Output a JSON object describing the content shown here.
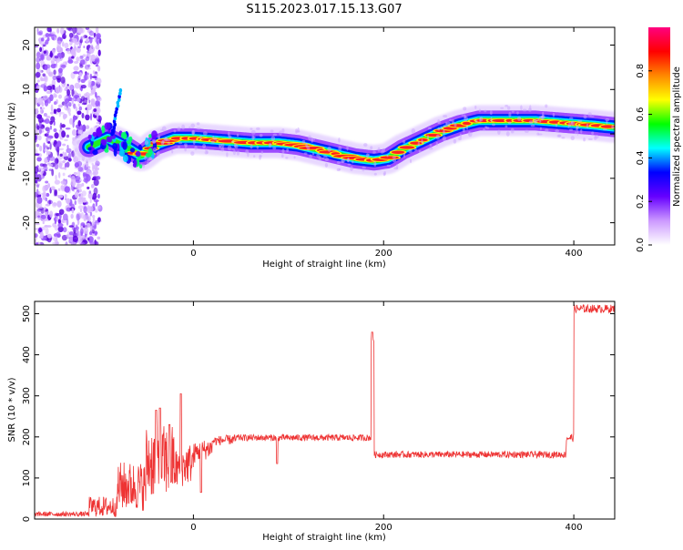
{
  "title": "S115.2023.017.15.13.G07",
  "chart_data": [
    {
      "type": "heatmap",
      "title": "",
      "xlabel": "Height of straight line (km)",
      "ylabel": "Frequency (Hz)",
      "xlim": [
        -167,
        443
      ],
      "ylim": [
        -25,
        24
      ],
      "xticks": [
        0,
        200,
        400
      ],
      "yticks": [
        -20,
        -10,
        0,
        10,
        20
      ],
      "colorbar": {
        "label": "Normalized spectral amplitude",
        "range": [
          0,
          1
        ],
        "ticks": [
          "0.0",
          "0.2",
          "0.4",
          "0.6",
          "0.8"
        ],
        "tick_values": [
          0.0,
          0.2,
          0.4,
          0.6,
          0.8
        ],
        "colors": [
          "#ffffff",
          "#cc99ff",
          "#6600ff",
          "#0000ff",
          "#00ffff",
          "#00ff00",
          "#ffff00",
          "#ff8800",
          "#ff0000",
          "#ff0080"
        ]
      },
      "ridge": {
        "x": [
          -110,
          -90,
          -70,
          -55,
          -40,
          -20,
          0,
          30,
          60,
          90,
          110,
          130,
          150,
          170,
          190,
          205,
          220,
          240,
          260,
          280,
          300,
          330,
          360,
          390,
          420,
          443
        ],
        "y": [
          -3,
          -1,
          -3,
          -5,
          -2.5,
          -1,
          -1,
          -1.5,
          -2,
          -2,
          -2.5,
          -3.5,
          -4.5,
          -5.5,
          -6,
          -5.5,
          -3.5,
          -1.5,
          0.5,
          2,
          3,
          3,
          3,
          2.5,
          2,
          1.5
        ]
      },
      "noise_region_x": [
        -167,
        -110
      ],
      "spur": {
        "x": -85,
        "y_range": [
          0,
          10
        ]
      }
    },
    {
      "type": "line",
      "title": "",
      "xlabel": "Height of straight line (km)",
      "ylabel": "SNR (10 * v/v)",
      "xlim": [
        -167,
        443
      ],
      "ylim": [
        0,
        530
      ],
      "xticks": [
        0,
        200,
        400
      ],
      "yticks": [
        0,
        100,
        200,
        300,
        400,
        500
      ],
      "color": "#ee3333",
      "segments": [
        {
          "x0": -167,
          "x1": -110,
          "mean": 12,
          "noise": 6
        },
        {
          "x0": -110,
          "x1": -80,
          "mean": 30,
          "noise": 25
        },
        {
          "x0": -80,
          "x1": -50,
          "mean": 80,
          "noise": 60
        },
        {
          "x0": -50,
          "x1": -20,
          "mean": 140,
          "noise": 90
        },
        {
          "x0": -20,
          "x1": 0,
          "mean": 120,
          "noise": 50
        },
        {
          "x0": 0,
          "x1": 20,
          "mean": 160,
          "noise": 25
        },
        {
          "x0": 20,
          "x1": 45,
          "mean": 190,
          "noise": 12
        },
        {
          "x0": 45,
          "x1": 187,
          "mean": 198,
          "noise": 8
        },
        {
          "x0": 187,
          "x1": 190,
          "mean": 440,
          "noise": 15
        },
        {
          "x0": 190,
          "x1": 392,
          "mean": 157,
          "noise": 8
        },
        {
          "x0": 392,
          "x1": 400,
          "mean": 198,
          "noise": 10
        },
        {
          "x0": 400,
          "x1": 443,
          "mean": 512,
          "noise": 10
        }
      ],
      "spikes": [
        {
          "x": -39,
          "y": 265
        },
        {
          "x": -35,
          "y": 270
        },
        {
          "x": -25,
          "y": 230
        },
        {
          "x": -13,
          "y": 305
        },
        {
          "x": 8,
          "y": 65
        },
        {
          "x": 88,
          "y": 135
        },
        {
          "x": 188,
          "y": 455
        }
      ]
    }
  ]
}
